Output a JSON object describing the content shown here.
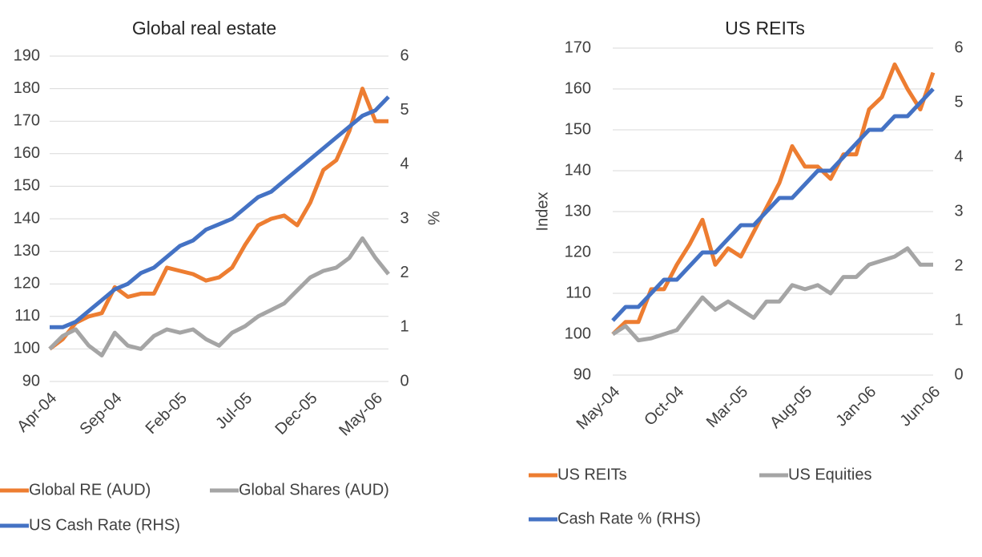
{
  "chart_data": [
    {
      "type": "line",
      "title": "Global real estate",
      "categories": [
        "Apr-04",
        null,
        null,
        null,
        null,
        "Sep-04",
        null,
        null,
        null,
        null,
        "Feb-05",
        null,
        null,
        null,
        null,
        "Jul-05",
        null,
        null,
        null,
        null,
        "Dec-05",
        null,
        null,
        null,
        null,
        "May-06",
        null
      ],
      "series": [
        {
          "name": "Global RE (AUD)",
          "color": "#ed7d31",
          "values": [
            100,
            103,
            108,
            110,
            111,
            119,
            116,
            117,
            117,
            125,
            124,
            123,
            121,
            122,
            125,
            132,
            138,
            140,
            141,
            138,
            145,
            155,
            158,
            167,
            180,
            170,
            170
          ]
        },
        {
          "name": "Global Shares (AUD)",
          "color": "#a5a5a5",
          "values": [
            100,
            104,
            106,
            101,
            98,
            105,
            101,
            100,
            104,
            106,
            105,
            106,
            103,
            101,
            105,
            107,
            110,
            112,
            114,
            118,
            122,
            124,
            125,
            128,
            134,
            128,
            123
          ]
        },
        {
          "name": "US Cash Rate (RHS)",
          "color": "#4472c4",
          "axis": "y2",
          "values": [
            1.0,
            1.0,
            1.1,
            1.3,
            1.5,
            1.7,
            1.8,
            2.0,
            2.1,
            2.3,
            2.5,
            2.6,
            2.8,
            2.9,
            3.0,
            3.2,
            3.4,
            3.5,
            3.7,
            3.9,
            4.1,
            4.3,
            4.5,
            4.7,
            4.9,
            5.0,
            5.25
          ]
        }
      ],
      "ylim": [
        90,
        190
      ],
      "yticks": [
        90,
        100,
        110,
        120,
        130,
        140,
        150,
        160,
        170,
        180,
        190
      ],
      "y2lim": [
        0,
        6
      ],
      "y2ticks": [
        0,
        1,
        2,
        3,
        4,
        5,
        6
      ],
      "y2label": "%",
      "grid": true
    },
    {
      "type": "line",
      "title": "US REITs",
      "categories": [
        "May-04",
        null,
        null,
        null,
        null,
        "Oct-04",
        null,
        null,
        null,
        null,
        "Mar-05",
        null,
        null,
        null,
        null,
        "Aug-05",
        null,
        null,
        null,
        null,
        "Jan-06",
        null,
        null,
        null,
        null,
        "Jun-06"
      ],
      "series": [
        {
          "name": "US REITs",
          "color": "#ed7d31",
          "values": [
            100,
            103,
            103,
            111,
            111,
            117,
            122,
            128,
            117,
            121,
            119,
            125,
            131,
            137,
            146,
            141,
            141,
            138,
            144,
            144,
            155,
            158,
            166,
            160,
            155,
            164
          ]
        },
        {
          "name": "US Equities",
          "color": "#a5a5a5",
          "values": [
            100,
            102,
            98.5,
            99,
            100,
            101,
            105,
            109,
            106,
            108,
            106,
            104,
            108,
            108,
            112,
            111,
            112,
            110,
            114,
            114,
            117,
            118,
            119,
            121,
            117,
            117
          ]
        },
        {
          "name": "Cash Rate % (RHS)",
          "color": "#4472c4",
          "axis": "y2",
          "values": [
            1.0,
            1.25,
            1.25,
            1.5,
            1.75,
            1.75,
            2.0,
            2.25,
            2.25,
            2.5,
            2.75,
            2.75,
            3.0,
            3.25,
            3.25,
            3.5,
            3.75,
            3.75,
            4.0,
            4.25,
            4.5,
            4.5,
            4.75,
            4.75,
            5.0,
            5.25
          ]
        }
      ],
      "ylim": [
        90,
        170
      ],
      "yticks": [
        90,
        100,
        110,
        120,
        130,
        140,
        150,
        160,
        170
      ],
      "ylabel": "Index",
      "y2lim": [
        0,
        6
      ],
      "y2ticks": [
        0,
        1,
        2,
        3,
        4,
        5,
        6
      ],
      "grid": true
    }
  ]
}
